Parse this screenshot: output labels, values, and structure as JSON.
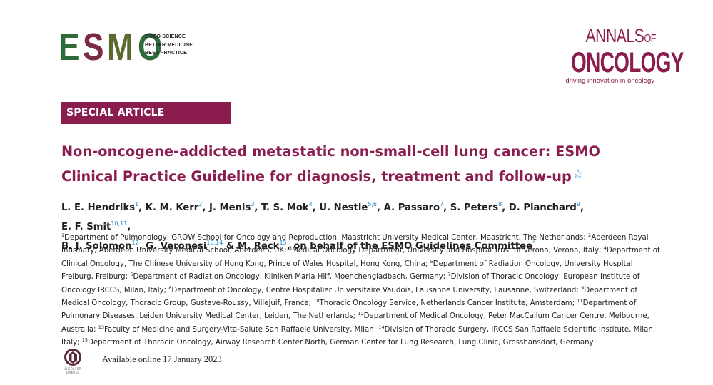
{
  "esmo": {
    "letters": [
      "E",
      "S",
      "M",
      "O"
    ],
    "letter_colors": [
      "#2e6b3b",
      "#7a2a45",
      "#5b6b2f",
      "#2e6b3b"
    ],
    "tagline": [
      "GOOD SCIENCE",
      "BETTER MEDICINE",
      "BEST PRACTICE"
    ]
  },
  "annals": {
    "line1": "ANNALS",
    "line1_of": "OF",
    "line2": "ONCOLOGY",
    "line3": "driving innovation in oncology"
  },
  "banner": {
    "label": "SPECIAL ARTICLE"
  },
  "title": {
    "line1": "Non-oncogene-addicted metastatic non-small-cell lung cancer: ESMO",
    "line2": "Clinical Practice Guideline for diagnosis, treatment and follow-up",
    "star": "☆"
  },
  "authors": [
    {
      "name": "L. E. Hendriks",
      "ref": "1",
      "sep": ", "
    },
    {
      "name": "K. M. Kerr",
      "ref": "2",
      "sep": ", "
    },
    {
      "name": "J. Menis",
      "ref": "3",
      "sep": ", "
    },
    {
      "name": "T. S. Mok",
      "ref": "4",
      "sep": ", "
    },
    {
      "name": "U. Nestle",
      "ref": "5,6",
      "sep": ", "
    },
    {
      "name": "A. Passaro",
      "ref": "7",
      "sep": ", "
    },
    {
      "name": "S. Peters",
      "ref": "8",
      "sep": ", "
    },
    {
      "name": "D. Planchard",
      "ref": "9",
      "sep": ", "
    },
    {
      "name": "E. F. Smit",
      "ref": "10,11",
      "sep": ","
    },
    {
      "name": "B. J. Solomon",
      "ref": "12",
      "sep": ", "
    },
    {
      "name": "G. Veronesi",
      "ref": "13,14",
      "sep": " & "
    },
    {
      "name": "M. Reck",
      "ref": "15",
      "sep": ", "
    }
  ],
  "authors_suffix": "on behalf of the ESMO Guidelines Committee",
  "authors_suffix_ref": "*",
  "affiliations": [
    {
      "n": "1",
      "text": "Department of Pulmonology, GROW School for Oncology and Reproduction, Maastricht University Medical Center, Maastricht, The Netherlands; "
    },
    {
      "n": "2",
      "text": "Aberdeen Royal Infirmary, Aberdeen University Medical School, Aberdeen, UK; "
    },
    {
      "n": "3",
      "text": "Medical Oncology Department, University and Hospital Trust of Verona, Verona, Italy; "
    },
    {
      "n": "4",
      "text": "Department of Clinical Oncology, The Chinese University of Hong Kong, Prince of Wales Hospital, Hong Kong, China; "
    },
    {
      "n": "5",
      "text": "Department of Radiation Oncology, University Hospital Freiburg, Freiburg; "
    },
    {
      "n": "6",
      "text": "Department of Radiation Oncology, Kliniken Maria Hilf, Moenchengladbach, Germany; "
    },
    {
      "n": "7",
      "text": "Division of Thoracic Oncology, European Institute of Oncology IRCCS, Milan, Italy; "
    },
    {
      "n": "8",
      "text": "Department of Oncology, Centre Hospitalier Universitaire Vaudois, Lausanne University, Lausanne, Switzerland; "
    },
    {
      "n": "9",
      "text": "Department of Medical Oncology, Thoracic Group, Gustave-Roussy, Villejuif, France; "
    },
    {
      "n": "10",
      "text": "Thoracic Oncology Service, Netherlands Cancer Institute, Amsterdam; "
    },
    {
      "n": "11",
      "text": "Department of Pulmonary Diseases, Leiden University Medical Center, Leiden, The Netherlands; "
    },
    {
      "n": "12",
      "text": "Department of Medical Oncology, Peter MacCallum Cancer Centre, Melbourne, Australia; "
    },
    {
      "n": "13",
      "text": "Faculty of Medicine and Surgery-Vita-Salute San Raffaele University, Milan; "
    },
    {
      "n": "14",
      "text": "Division of Thoracic Surgery, IRCCS San Raffaele Scientific Institute, Milan, Italy; "
    },
    {
      "n": "15",
      "text": "Department of Thoracic Oncology, Airway Research Center North, German Center for Lung Research, Lung Clinic, Grosshansdorf, Germany"
    }
  ],
  "crossmark": {
    "label": "CHECK FOR UPDATES",
    "icon": "crossmark-icon"
  },
  "available": "Available online 17 January 2023",
  "colors": {
    "brand": "#8b1d4e",
    "ref_blue": "#1e88c9"
  }
}
